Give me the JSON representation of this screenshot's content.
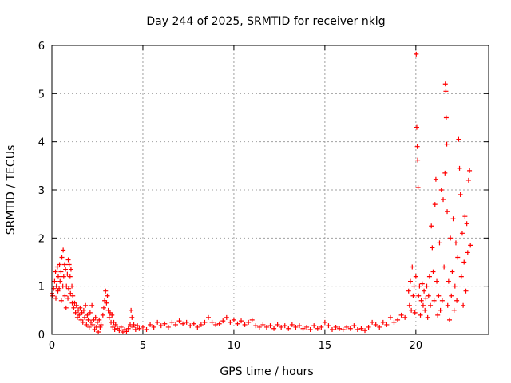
{
  "chart_data": {
    "type": "scatter",
    "title": "Day 244 of 2025, SRMTID for receiver nklg",
    "xlabel": "GPS time / hours",
    "ylabel": "SRMTID / TECUs",
    "xlim": [
      0,
      24
    ],
    "ylim": [
      0,
      6
    ],
    "xticks": [
      0,
      5,
      10,
      15,
      20
    ],
    "yticks": [
      0,
      1,
      2,
      3,
      4,
      5,
      6
    ],
    "grid": true,
    "marker": "+",
    "marker_color": "#ff0000",
    "grid_color": "#a0a0a0",
    "series": [
      {
        "name": "SRMTID",
        "points": [
          [
            0.0,
            0.85
          ],
          [
            0.05,
            0.8
          ],
          [
            0.1,
            0.95
          ],
          [
            0.15,
            1.1
          ],
          [
            0.2,
            1.3
          ],
          [
            0.22,
            0.75
          ],
          [
            0.25,
            1.0
          ],
          [
            0.3,
            1.4
          ],
          [
            0.33,
            0.9
          ],
          [
            0.35,
            1.2
          ],
          [
            0.4,
            0.95
          ],
          [
            0.42,
            1.45
          ],
          [
            0.45,
            1.1
          ],
          [
            0.5,
            1.3
          ],
          [
            0.52,
            0.7
          ],
          [
            0.55,
            1.6
          ],
          [
            0.6,
            1.0
          ],
          [
            0.62,
            1.75
          ],
          [
            0.65,
            1.2
          ],
          [
            0.7,
            1.45
          ],
          [
            0.72,
            0.8
          ],
          [
            0.75,
            1.35
          ],
          [
            0.78,
            0.55
          ],
          [
            0.8,
            1.0
          ],
          [
            0.85,
            1.25
          ],
          [
            0.88,
            0.75
          ],
          [
            0.9,
            1.55
          ],
          [
            0.92,
            0.95
          ],
          [
            0.95,
            1.45
          ],
          [
            1.0,
            1.2
          ],
          [
            1.02,
            0.85
          ],
          [
            1.05,
            1.35
          ],
          [
            1.1,
            1.0
          ],
          [
            1.12,
            0.65
          ],
          [
            1.15,
            0.8
          ],
          [
            1.2,
            0.55
          ],
          [
            1.25,
            0.65
          ],
          [
            1.3,
            0.45
          ],
          [
            1.35,
            0.6
          ],
          [
            1.4,
            0.35
          ],
          [
            1.45,
            0.5
          ],
          [
            1.5,
            0.4
          ],
          [
            1.55,
            0.55
          ],
          [
            1.6,
            0.3
          ],
          [
            1.65,
            0.45
          ],
          [
            1.7,
            0.25
          ],
          [
            1.75,
            0.5
          ],
          [
            1.8,
            0.35
          ],
          [
            1.85,
            0.6
          ],
          [
            1.9,
            0.2
          ],
          [
            1.95,
            0.4
          ],
          [
            2.0,
            0.3
          ],
          [
            2.05,
            0.15
          ],
          [
            2.1,
            0.45
          ],
          [
            2.15,
            0.25
          ],
          [
            2.2,
            0.6
          ],
          [
            2.25,
            0.2
          ],
          [
            2.3,
            0.3
          ],
          [
            2.35,
            0.1
          ],
          [
            2.4,
            0.35
          ],
          [
            2.45,
            0.15
          ],
          [
            2.5,
            0.25
          ],
          [
            2.55,
            0.05
          ],
          [
            2.6,
            0.3
          ],
          [
            2.65,
            0.15
          ],
          [
            2.7,
            0.2
          ],
          [
            2.8,
            0.4
          ],
          [
            2.85,
            0.55
          ],
          [
            2.9,
            0.7
          ],
          [
            2.95,
            0.9
          ],
          [
            3.0,
            0.65
          ],
          [
            3.05,
            0.8
          ],
          [
            3.1,
            0.5
          ],
          [
            3.15,
            0.35
          ],
          [
            3.2,
            0.45
          ],
          [
            3.25,
            0.25
          ],
          [
            3.3,
            0.4
          ],
          [
            3.35,
            0.15
          ],
          [
            3.4,
            0.25
          ],
          [
            3.45,
            0.1
          ],
          [
            3.5,
            0.2
          ],
          [
            3.6,
            0.12
          ],
          [
            3.7,
            0.08
          ],
          [
            3.8,
            0.15
          ],
          [
            3.9,
            0.05
          ],
          [
            4.0,
            0.1
          ],
          [
            4.1,
            0.06
          ],
          [
            4.2,
            0.12
          ],
          [
            4.3,
            0.2
          ],
          [
            4.35,
            0.5
          ],
          [
            4.4,
            0.35
          ],
          [
            4.45,
            0.15
          ],
          [
            4.5,
            0.2
          ],
          [
            4.6,
            0.1
          ],
          [
            4.7,
            0.18
          ],
          [
            4.8,
            0.12
          ],
          [
            5.0,
            0.15
          ],
          [
            5.2,
            0.1
          ],
          [
            5.4,
            0.2
          ],
          [
            5.6,
            0.15
          ],
          [
            5.8,
            0.25
          ],
          [
            6.0,
            0.18
          ],
          [
            6.2,
            0.22
          ],
          [
            6.4,
            0.15
          ],
          [
            6.6,
            0.25
          ],
          [
            6.8,
            0.2
          ],
          [
            7.0,
            0.28
          ],
          [
            7.2,
            0.22
          ],
          [
            7.4,
            0.25
          ],
          [
            7.6,
            0.18
          ],
          [
            7.8,
            0.22
          ],
          [
            8.0,
            0.15
          ],
          [
            8.2,
            0.2
          ],
          [
            8.4,
            0.25
          ],
          [
            8.6,
            0.35
          ],
          [
            8.8,
            0.25
          ],
          [
            9.0,
            0.2
          ],
          [
            9.2,
            0.22
          ],
          [
            9.4,
            0.28
          ],
          [
            9.6,
            0.35
          ],
          [
            9.8,
            0.25
          ],
          [
            10.0,
            0.3
          ],
          [
            10.2,
            0.22
          ],
          [
            10.4,
            0.28
          ],
          [
            10.6,
            0.2
          ],
          [
            10.8,
            0.25
          ],
          [
            11.0,
            0.3
          ],
          [
            11.2,
            0.18
          ],
          [
            11.4,
            0.15
          ],
          [
            11.6,
            0.2
          ],
          [
            11.8,
            0.15
          ],
          [
            12.0,
            0.18
          ],
          [
            12.2,
            0.12
          ],
          [
            12.4,
            0.2
          ],
          [
            12.6,
            0.15
          ],
          [
            12.8,
            0.18
          ],
          [
            13.0,
            0.12
          ],
          [
            13.2,
            0.2
          ],
          [
            13.4,
            0.15
          ],
          [
            13.6,
            0.18
          ],
          [
            13.8,
            0.12
          ],
          [
            14.0,
            0.15
          ],
          [
            14.2,
            0.1
          ],
          [
            14.4,
            0.18
          ],
          [
            14.6,
            0.12
          ],
          [
            14.8,
            0.15
          ],
          [
            15.0,
            0.25
          ],
          [
            15.2,
            0.18
          ],
          [
            15.4,
            0.1
          ],
          [
            15.6,
            0.15
          ],
          [
            15.8,
            0.12
          ],
          [
            16.0,
            0.1
          ],
          [
            16.2,
            0.15
          ],
          [
            16.4,
            0.12
          ],
          [
            16.6,
            0.18
          ],
          [
            16.8,
            0.1
          ],
          [
            17.0,
            0.12
          ],
          [
            17.2,
            0.08
          ],
          [
            17.4,
            0.15
          ],
          [
            17.6,
            0.25
          ],
          [
            17.8,
            0.2
          ],
          [
            18.0,
            0.15
          ],
          [
            18.2,
            0.25
          ],
          [
            18.4,
            0.2
          ],
          [
            18.6,
            0.35
          ],
          [
            18.8,
            0.25
          ],
          [
            19.0,
            0.3
          ],
          [
            19.2,
            0.4
          ],
          [
            19.4,
            0.35
          ],
          [
            19.6,
            0.9
          ],
          [
            19.65,
            0.6
          ],
          [
            19.7,
            1.1
          ],
          [
            19.75,
            0.5
          ],
          [
            19.8,
            1.4
          ],
          [
            19.85,
            0.8
          ],
          [
            19.9,
            1.0
          ],
          [
            19.95,
            0.45
          ],
          [
            20.0,
            1.2
          ],
          [
            20.02,
            5.82
          ],
          [
            20.05,
            4.3
          ],
          [
            20.08,
            3.9
          ],
          [
            20.1,
            3.62
          ],
          [
            20.12,
            3.05
          ],
          [
            20.15,
            0.8
          ],
          [
            20.2,
            1.0
          ],
          [
            20.25,
            0.4
          ],
          [
            20.3,
            0.7
          ],
          [
            20.35,
            1.05
          ],
          [
            20.4,
            0.6
          ],
          [
            20.45,
            0.9
          ],
          [
            20.5,
            0.5
          ],
          [
            20.55,
            0.75
          ],
          [
            20.6,
            1.0
          ],
          [
            20.65,
            0.35
          ],
          [
            20.7,
            0.8
          ],
          [
            20.75,
            1.2
          ],
          [
            20.8,
            0.6
          ],
          [
            20.85,
            2.25
          ],
          [
            20.9,
            1.8
          ],
          [
            20.95,
            1.3
          ],
          [
            21.0,
            0.7
          ],
          [
            21.05,
            2.7
          ],
          [
            21.1,
            3.22
          ],
          [
            21.15,
            1.1
          ],
          [
            21.2,
            0.4
          ],
          [
            21.25,
            0.8
          ],
          [
            21.3,
            1.9
          ],
          [
            21.35,
            0.5
          ],
          [
            21.4,
            3.0
          ],
          [
            21.45,
            0.7
          ],
          [
            21.5,
            2.8
          ],
          [
            21.55,
            1.4
          ],
          [
            21.6,
            3.35
          ],
          [
            21.62,
            5.2
          ],
          [
            21.65,
            5.05
          ],
          [
            21.67,
            4.5
          ],
          [
            21.7,
            3.95
          ],
          [
            21.72,
            2.55
          ],
          [
            21.75,
            0.6
          ],
          [
            21.8,
            1.1
          ],
          [
            21.85,
            0.3
          ],
          [
            21.9,
            2.0
          ],
          [
            21.95,
            0.8
          ],
          [
            22.0,
            1.3
          ],
          [
            22.05,
            2.4
          ],
          [
            22.1,
            0.5
          ],
          [
            22.15,
            1.0
          ],
          [
            22.2,
            1.9
          ],
          [
            22.25,
            0.7
          ],
          [
            22.3,
            1.6
          ],
          [
            22.35,
            4.05
          ],
          [
            22.4,
            3.45
          ],
          [
            22.45,
            2.9
          ],
          [
            22.5,
            1.2
          ],
          [
            22.55,
            2.1
          ],
          [
            22.6,
            0.6
          ],
          [
            22.65,
            1.5
          ],
          [
            22.7,
            2.45
          ],
          [
            22.75,
            0.9
          ],
          [
            22.8,
            2.3
          ],
          [
            22.85,
            1.7
          ],
          [
            22.9,
            3.2
          ],
          [
            22.95,
            3.4
          ],
          [
            23.0,
            1.85
          ]
        ]
      }
    ]
  }
}
